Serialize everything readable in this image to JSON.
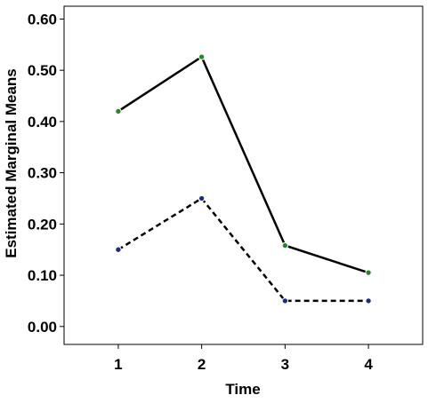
{
  "chart_data": {
    "type": "line",
    "title": "",
    "xlabel": "Time",
    "ylabel": "Estimated Marginal Means",
    "categories": [
      "1",
      "2",
      "3",
      "4"
    ],
    "x_range": [
      0.35,
      4.65
    ],
    "ylim": [
      -0.035,
      0.625
    ],
    "y_ticks": [
      0.0,
      0.1,
      0.2,
      0.3,
      0.4,
      0.5,
      0.6
    ],
    "y_tick_labels": [
      "0.00",
      "0.10",
      "0.20",
      "0.30",
      "0.40",
      "0.50",
      "0.60"
    ],
    "grid": false,
    "legend": "none",
    "series": [
      {
        "values": [
          0.42,
          0.526,
          0.158,
          0.105
        ],
        "line_style": "solid",
        "line_color": "#000000",
        "marker_fill": "#1f8a1f"
      },
      {
        "values": [
          0.15,
          0.25,
          0.05,
          0.05
        ],
        "line_style": "dashed",
        "line_color": "#000000",
        "marker_fill": "#1c2a86"
      }
    ]
  }
}
